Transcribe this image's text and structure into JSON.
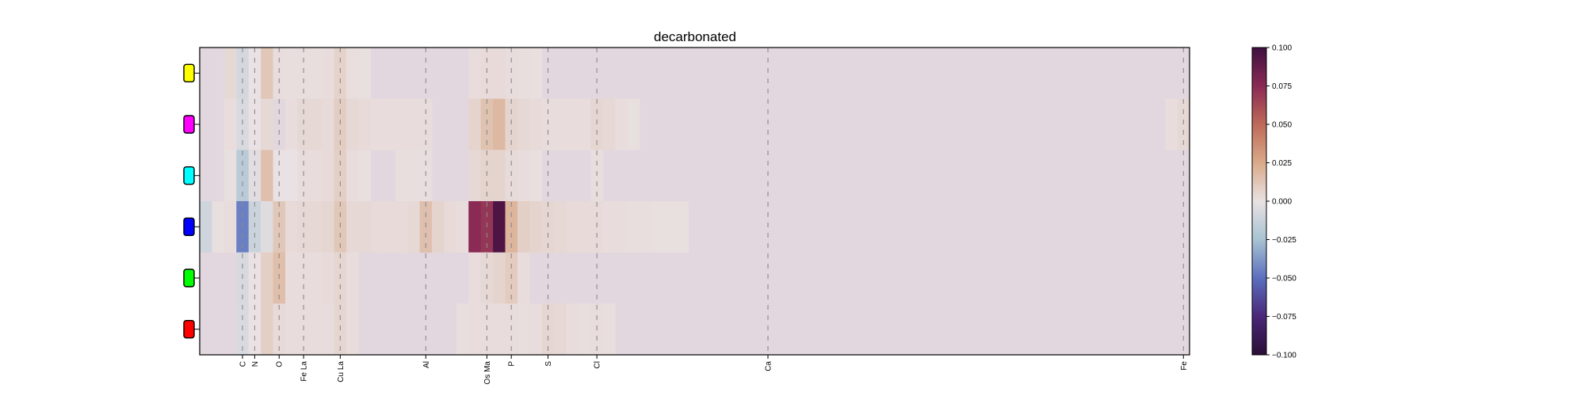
{
  "chart_data": {
    "type": "heatmap",
    "title": "decarbonated",
    "xlabel": "",
    "ylabel": "",
    "x_range": [
      0,
      81
    ],
    "x_tick_labels": [
      {
        "x": 3.5,
        "label": "C"
      },
      {
        "x": 4.5,
        "label": "N"
      },
      {
        "x": 6.5,
        "label": "O"
      },
      {
        "x": 8.5,
        "label": "Fe La"
      },
      {
        "x": 11.5,
        "label": "Cu La"
      },
      {
        "x": 18.5,
        "label": "Al"
      },
      {
        "x": 23.5,
        "label": "Os Ma"
      },
      {
        "x": 25.5,
        "label": "P"
      },
      {
        "x": 28.5,
        "label": "S"
      },
      {
        "x": 32.5,
        "label": "Cl"
      },
      {
        "x": 46.5,
        "label": "Ca"
      },
      {
        "x": 80.5,
        "label": "Fe"
      }
    ],
    "rows": [
      {
        "marker_color": "#ffff00",
        "values": {
          "2": 0.004,
          "3": -0.008,
          "4": 0.0,
          "5": 0.012,
          "6": 0.002,
          "7": 0.0015,
          "8": 0.0015,
          "9": 0.0015,
          "10": 0.002,
          "11": 0.007,
          "12": 0.0015,
          "13": 0.001,
          "22": 0.002,
          "23": 0.003,
          "24": 0.003,
          "25": 0.002,
          "26": 0.0015,
          "27": 0.001
        }
      },
      {
        "marker_color": "#ff00ff",
        "values": {
          "2": 0.002,
          "3": -0.006,
          "4": 0.0,
          "5": 0.004,
          "7": 0.002,
          "8": 0.004,
          "9": 0.004,
          "10": 0.003,
          "11": 0.009,
          "12": 0.004,
          "13": 0.003,
          "14": 0.002,
          "15": 0.002,
          "16": 0.002,
          "17": 0.002,
          "18": 0.002,
          "22": 0.006,
          "23": 0.014,
          "24": 0.018,
          "25": 0.006,
          "26": 0.004,
          "27": 0.003,
          "28": 0.002,
          "29": 0.002,
          "30": 0.002,
          "31": 0.002,
          "32": 0.005,
          "33": 0.004,
          "34": 0.002,
          "35": 0.001,
          "79": 0.002,
          "80": 0.004
        }
      },
      {
        "marker_color": "#00ffff",
        "values": {
          "2": 0.001,
          "3": -0.018,
          "4": -0.003,
          "5": 0.015,
          "6": 0.0,
          "7": 0.0,
          "8": 0.002,
          "9": 0.002,
          "10": 0.003,
          "11": 0.008,
          "12": 0.002,
          "13": 0.001,
          "16": 0.0015,
          "17": 0.0015,
          "18": 0.0015,
          "22": 0.004,
          "23": 0.006,
          "24": 0.006,
          "25": 0.003,
          "26": 0.002,
          "27": 0.001,
          "32": 0.0015
        }
      },
      {
        "marker_color": "#0000ff",
        "values": {
          "0": -0.01,
          "1": 0.001,
          "2": 0.002,
          "3": -0.045,
          "4": -0.012,
          "5": -0.004,
          "6": 0.012,
          "7": 0.003,
          "8": 0.004,
          "9": 0.004,
          "10": 0.005,
          "11": 0.012,
          "12": 0.004,
          "13": 0.004,
          "14": 0.003,
          "15": 0.003,
          "16": 0.003,
          "17": 0.004,
          "18": 0.015,
          "19": 0.006,
          "20": 0.003,
          "21": 0.002,
          "22": 0.075,
          "23": 0.07,
          "24": 0.095,
          "25": 0.02,
          "26": 0.008,
          "27": 0.006,
          "28": 0.005,
          "29": 0.004,
          "30": 0.003,
          "31": 0.003,
          "32": 0.003,
          "33": 0.002,
          "34": 0.002,
          "35": 0.0015,
          "36": 0.0015,
          "37": 0.001,
          "38": 0.001,
          "39": 0.001
        }
      },
      {
        "marker_color": "#00ff00",
        "values": {
          "3": -0.007,
          "4": 0.0,
          "5": 0.008,
          "6": 0.016,
          "7": 0.002,
          "8": 0.002,
          "9": 0.002,
          "10": 0.003,
          "11": 0.005,
          "12": 0.002,
          "22": 0.002,
          "23": 0.004,
          "24": 0.006,
          "25": 0.01,
          "26": 0.002
        }
      },
      {
        "marker_color": "#ff0000",
        "values": {
          "3": -0.006,
          "4": 0.0,
          "5": 0.008,
          "6": 0.003,
          "7": 0.002,
          "8": 0.002,
          "9": 0.002,
          "10": 0.002,
          "11": 0.005,
          "12": 0.002,
          "21": 0.0015,
          "22": 0.002,
          "23": 0.002,
          "24": 0.002,
          "25": 0.002,
          "26": 0.0015,
          "27": 0.002,
          "28": 0.005,
          "29": 0.004,
          "30": 0.002,
          "31": 0.0015,
          "32": 0.002,
          "33": 0.0015
        }
      }
    ],
    "colorbar": {
      "range": [
        -0.1,
        0.1
      ],
      "ticks": [
        "0.100",
        "0.075",
        "0.050",
        "0.025",
        "0.000",
        "−0.025",
        "−0.050",
        "−0.075",
        "−0.100"
      ],
      "colors": [
        "#2a0e36",
        "#4a2778",
        "#5b6fbf",
        "#a8c3d2",
        "#e9e1e3",
        "#d9aa8a",
        "#be6a58",
        "#8a2a55",
        "#3f1040"
      ]
    },
    "background_value_color": "#e3d7df",
    "gridlines": "dashed vertical at element positions",
    "legend": "none"
  }
}
